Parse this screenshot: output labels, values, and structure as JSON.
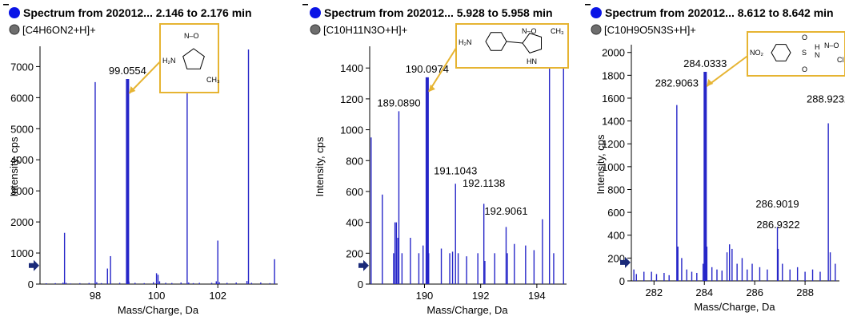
{
  "colors": {
    "peak": "#2626c8",
    "accent": "#0a14e6",
    "marker_gray": "#6e6e6e",
    "box": "#e6b432",
    "arrow": "#e6b432"
  },
  "chart_data": [
    {
      "type": "bar",
      "title": "Spectrum from 202012... 2.146 to 2.176 min",
      "legend": "[C4H6ON2+H]+",
      "xlabel": "Mass/Charge, Da",
      "ylabel": "Intensity, cps",
      "xlim": [
        96.2,
        103.9
      ],
      "ylim": [
        0,
        7550
      ],
      "xticks": [
        98,
        100,
        102
      ],
      "yticks": [
        0,
        1000,
        2000,
        3000,
        4000,
        5000,
        6000,
        7000
      ],
      "highlight": {
        "x": 99.0554,
        "label": "99.0554"
      },
      "structure_labels": [
        "N–O",
        "H₂N",
        "CH₃"
      ],
      "peaks": [
        [
          96.4,
          25
        ],
        [
          96.7,
          30
        ],
        [
          96.95,
          45
        ],
        [
          97.0,
          1650
        ],
        [
          97.05,
          40
        ],
        [
          97.2,
          20
        ],
        [
          97.5,
          30
        ],
        [
          97.8,
          35
        ],
        [
          98.0,
          6500
        ],
        [
          98.05,
          60
        ],
        [
          98.2,
          30
        ],
        [
          98.4,
          500
        ],
        [
          98.5,
          900
        ],
        [
          98.8,
          40
        ],
        [
          99.0554,
          6600
        ],
        [
          99.1,
          80
        ],
        [
          99.3,
          40
        ],
        [
          99.6,
          30
        ],
        [
          99.9,
          60
        ],
        [
          100.0,
          350
        ],
        [
          100.05,
          300
        ],
        [
          100.1,
          90
        ],
        [
          100.3,
          40
        ],
        [
          100.5,
          35
        ],
        [
          100.8,
          50
        ],
        [
          101.0,
          7500
        ],
        [
          101.05,
          50
        ],
        [
          101.2,
          30
        ],
        [
          101.4,
          40
        ],
        [
          101.8,
          40
        ],
        [
          101.95,
          90
        ],
        [
          102.0,
          1400
        ],
        [
          102.05,
          60
        ],
        [
          102.3,
          40
        ],
        [
          102.6,
          50
        ],
        [
          102.95,
          100
        ],
        [
          103.0,
          7550
        ],
        [
          103.1,
          40
        ],
        [
          103.4,
          50
        ],
        [
          103.7,
          30
        ],
        [
          103.85,
          800
        ]
      ]
    },
    {
      "type": "bar",
      "title": "Spectrum from 202012... 5.928 to 5.958 min",
      "legend": "[C10H11N3O+H]+",
      "xlabel": "Mass/Charge, Da",
      "ylabel": "Intensity, cps",
      "xlim": [
        188.05,
        195.0
      ],
      "ylim": [
        0,
        1520
      ],
      "xticks": [
        190,
        192,
        194
      ],
      "yticks": [
        0,
        200,
        400,
        600,
        800,
        1000,
        1200,
        1400
      ],
      "highlight": {
        "x": 190.0974,
        "label": "190.0974"
      },
      "structure_labels": [
        "H₂N",
        "N–O",
        "CH₃",
        "HN"
      ],
      "labels": [
        {
          "x": 189.089,
          "y": 1120,
          "text": "189.0890"
        },
        {
          "x": 191.1043,
          "y": 680,
          "text": "191.1043"
        },
        {
          "x": 192.1138,
          "y": 600,
          "text": "192.1138"
        },
        {
          "x": 192.9061,
          "y": 420,
          "text": "192.9061"
        }
      ],
      "peaks": [
        [
          188.1,
          950
        ],
        [
          188.5,
          580
        ],
        [
          188.9,
          200
        ],
        [
          188.95,
          400
        ],
        [
          189.0,
          400
        ],
        [
          189.05,
          300
        ],
        [
          189.089,
          1120
        ],
        [
          189.2,
          200
        ],
        [
          189.5,
          300
        ],
        [
          189.8,
          200
        ],
        [
          189.95,
          250
        ],
        [
          190.0974,
          1340
        ],
        [
          190.15,
          200
        ],
        [
          190.6,
          230
        ],
        [
          190.9,
          200
        ],
        [
          191.0,
          210
        ],
        [
          191.1043,
          650
        ],
        [
          191.2,
          200
        ],
        [
          191.5,
          180
        ],
        [
          191.9,
          200
        ],
        [
          192.1138,
          520
        ],
        [
          192.15,
          150
        ],
        [
          192.5,
          200
        ],
        [
          192.9061,
          370
        ],
        [
          192.95,
          200
        ],
        [
          193.2,
          260
        ],
        [
          193.6,
          250
        ],
        [
          193.9,
          220
        ],
        [
          194.2,
          420
        ],
        [
          194.45,
          1420
        ],
        [
          194.6,
          200
        ],
        [
          194.95,
          1520
        ]
      ]
    },
    {
      "type": "bar",
      "title": "Spectrum from 202012... 8.612 to 8.642 min",
      "legend": "[C10H9O5N3S+H]+",
      "xlabel": "Mass/Charge, Da",
      "ylabel": "Intensity, cps",
      "xlim": [
        281.1,
        289.3
      ],
      "ylim": [
        0,
        2040
      ],
      "xticks": [
        282,
        284,
        286,
        288
      ],
      "yticks": [
        0,
        200,
        400,
        600,
        800,
        1000,
        1200,
        1400,
        1600,
        1800,
        2000
      ],
      "highlight": {
        "x": 284.0333,
        "label": "284.0333"
      },
      "structure_labels": [
        "NO₂",
        "O",
        "S",
        "O",
        "H",
        "N",
        "N–O",
        "Cl"
      ],
      "labels": [
        {
          "x": 282.9063,
          "y": 1660,
          "text": "282.9063"
        },
        {
          "x": 288.9232,
          "y": 1520,
          "text": "288.9232"
        },
        {
          "x": 286.9019,
          "y": 600,
          "text": "286.9019"
        },
        {
          "x": 286.9322,
          "y": 420,
          "text": "286.9322"
        }
      ],
      "peaks": [
        [
          281.2,
          100
        ],
        [
          281.3,
          60
        ],
        [
          281.6,
          80
        ],
        [
          281.9,
          80
        ],
        [
          282.1,
          60
        ],
        [
          282.4,
          70
        ],
        [
          282.6,
          50
        ],
        [
          282.9063,
          1540
        ],
        [
          282.95,
          300
        ],
        [
          283.1,
          200
        ],
        [
          283.3,
          100
        ],
        [
          283.5,
          80
        ],
        [
          283.7,
          70
        ],
        [
          283.95,
          150
        ],
        [
          284.0333,
          1830
        ],
        [
          284.1,
          300
        ],
        [
          284.3,
          120
        ],
        [
          284.5,
          100
        ],
        [
          284.7,
          90
        ],
        [
          284.9,
          250
        ],
        [
          285.0,
          320
        ],
        [
          285.1,
          280
        ],
        [
          285.3,
          150
        ],
        [
          285.5,
          200
        ],
        [
          285.7,
          100
        ],
        [
          285.9,
          150
        ],
        [
          286.2,
          120
        ],
        [
          286.5,
          100
        ],
        [
          286.9019,
          470
        ],
        [
          286.93,
          280
        ],
        [
          287.1,
          150
        ],
        [
          287.4,
          100
        ],
        [
          287.7,
          120
        ],
        [
          288.0,
          80
        ],
        [
          288.3,
          100
        ],
        [
          288.6,
          80
        ],
        [
          288.9232,
          1380
        ],
        [
          289.0,
          250
        ],
        [
          289.2,
          150
        ]
      ]
    }
  ]
}
